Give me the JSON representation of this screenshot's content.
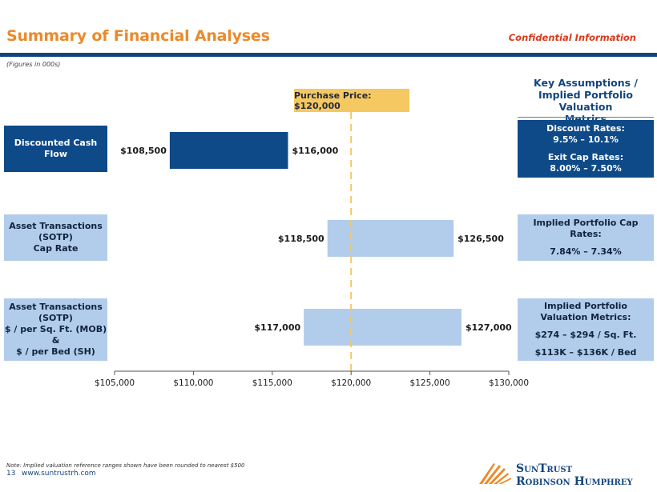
{
  "page": {
    "title": "Summary of Financial Analyses",
    "confidential": "Confidential Information",
    "figures_note": "(Figures in 000s)",
    "footnote": "Note: Implied valuation reference ranges shown have been rounded to nearest $500",
    "page_number": "13",
    "url": "www.suntrustrh.com",
    "logo_line1": "SunTrust",
    "logo_line2": "Robinson Humphrey"
  },
  "assumptions_title": "Key Assumptions /\nImplied Portfolio Valuation\nMetrics",
  "purchase_label": "Purchase Price: $120,000",
  "rows": [
    {
      "label": "Discounted Cash\nFlow",
      "details": [
        "Discount Rates:",
        "9.5% – 10.1%",
        "Exit Cap Rates:",
        "8.00% – 7.50%"
      ]
    },
    {
      "label": "Asset Transactions\n(SOTP)\nCap Rate",
      "details": [
        "Implied Portfolio Cap Rates:",
        "7.84% – 7.34%"
      ]
    },
    {
      "label": "Asset Transactions\n(SOTP)\n$ / per Sq. Ft. (MOB)\n&\n$ / per Bed (SH)",
      "details": [
        "Implied Portfolio Valuation Metrics:",
        "$274 – $294 / Sq. Ft.",
        "$113K – $136K / Bed"
      ]
    }
  ],
  "colors": {
    "dark_blue": "#0f4a88",
    "light_blue": "#b2cceb",
    "accent_orange": "#ea8a2a",
    "purchase_line": "#f6c862"
  },
  "chart_data": {
    "type": "floating_bar",
    "orientation": "horizontal",
    "categories": [
      "Discounted Cash Flow",
      "Asset Transactions (SOTP) Cap Rate",
      "Asset Transactions (SOTP) $ / per Sq. Ft. (MOB) & $ / per Bed (SH)"
    ],
    "ranges": [
      {
        "low": 108500,
        "high": 116000,
        "low_label": "$108,500",
        "high_label": "$116,000",
        "color": "#0f4a88"
      },
      {
        "low": 118500,
        "high": 126500,
        "low_label": "$118,500",
        "high_label": "$126,500",
        "color": "#b2cceb"
      },
      {
        "low": 117000,
        "high": 127000,
        "low_label": "$117,000",
        "high_label": "$127,000",
        "color": "#b2cceb"
      }
    ],
    "reference_line": {
      "value": 120000,
      "label": "Purchase Price: $120,000"
    },
    "xlim": [
      105000,
      130000
    ],
    "xticks": [
      105000,
      110000,
      115000,
      120000,
      125000,
      130000
    ],
    "xtick_labels": [
      "$105,000",
      "$110,000",
      "$115,000",
      "$120,000",
      "$125,000",
      "$130,000"
    ],
    "units": "$ in 000s"
  }
}
